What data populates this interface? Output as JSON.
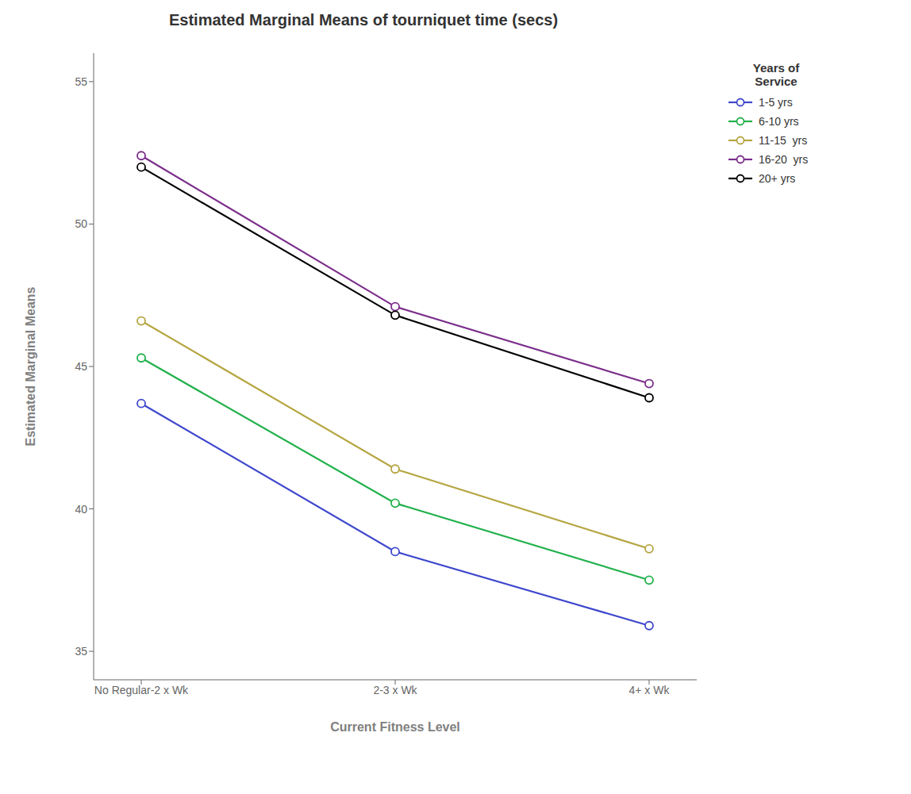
{
  "chart_data": {
    "type": "line",
    "title": "Estimated Marginal Means of tourniquet time (secs)",
    "xlabel": "Current Fitness Level",
    "ylabel": "Estimated Marginal Means",
    "categories": [
      "No Regular-2 x Wk",
      "2-3 x Wk",
      "4+ x Wk"
    ],
    "series": [
      {
        "name": "1-5 yrs",
        "color": "#3F48CC",
        "values": [
          43.7,
          38.5,
          35.9
        ]
      },
      {
        "name": "6-10 yrs",
        "color": "#22B14C",
        "values": [
          45.3,
          40.2,
          37.5
        ]
      },
      {
        "name": "11-15  yrs",
        "color": "#B5A642",
        "values": [
          46.6,
          41.4,
          38.6
        ]
      },
      {
        "name": "16-20  yrs",
        "color": "#7B2D8B",
        "values": [
          52.4,
          47.1,
          44.4
        ]
      },
      {
        "name": "20+ yrs",
        "color": "#000000",
        "values": [
          52.0,
          46.8,
          43.9
        ]
      }
    ],
    "ylim": [
      34,
      56
    ],
    "yticks": [
      35,
      40,
      45,
      50,
      55
    ],
    "grid": false,
    "legend": "right",
    "legend_title": "Years of\nService",
    "marker": "circle"
  }
}
